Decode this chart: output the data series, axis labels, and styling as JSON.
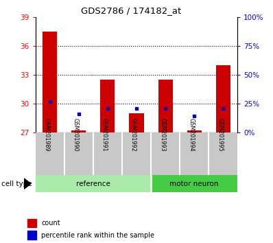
{
  "title": "GDS2786 / 174182_at",
  "samples": [
    "GSM201989",
    "GSM201990",
    "GSM201991",
    "GSM201992",
    "GSM201993",
    "GSM201994",
    "GSM201995"
  ],
  "ref_indices": [
    0,
    1,
    2,
    3
  ],
  "neu_indices": [
    4,
    5,
    6
  ],
  "red_bar_tops": [
    37.5,
    27.2,
    32.5,
    29.0,
    32.5,
    27.2,
    34.0
  ],
  "blue_marker_y": [
    30.2,
    28.9,
    29.5,
    29.5,
    29.5,
    28.7,
    29.5
  ],
  "bar_bottom": 27.0,
  "ylim_left": [
    27,
    39
  ],
  "ylim_right": [
    0,
    100
  ],
  "left_ticks": [
    27,
    30,
    33,
    36,
    39
  ],
  "right_ticks": [
    0,
    25,
    50,
    75,
    100
  ],
  "right_tick_labels": [
    "0%",
    "25%",
    "50%",
    "75%",
    "100%"
  ],
  "bar_color": "#CC0000",
  "blue_color": "#0000CC",
  "bg_color": "#FFFFFF",
  "ref_color": "#AAEAAA",
  "neu_color": "#44CC44",
  "cell_type_label": "cell type",
  "group_label_ref": "reference",
  "group_label_neu": "motor neuron",
  "legend_count": "count",
  "legend_pct": "percentile rank within the sample",
  "bar_width": 0.5,
  "grid_yticks": [
    30,
    33,
    36
  ]
}
